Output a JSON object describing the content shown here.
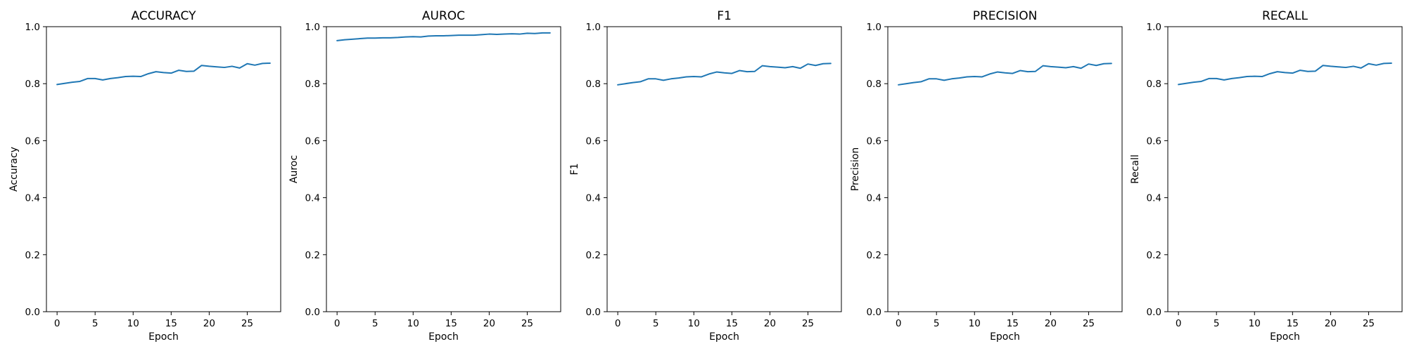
{
  "figure": {
    "line_color": "#1f77b4"
  },
  "chart_data": [
    {
      "type": "line",
      "title": "ACCURACY",
      "xlabel": "Epoch",
      "ylabel": "Accuracy",
      "xlim": [
        -1.4,
        29.4
      ],
      "ylim": [
        0.0,
        1.0
      ],
      "xticks": [
        0,
        5,
        10,
        15,
        20,
        25
      ],
      "xtick_labels": [
        "0",
        "5",
        "10",
        "15",
        "20",
        "25"
      ],
      "yticks": [
        0.0,
        0.2,
        0.4,
        0.6,
        0.8,
        1.0
      ],
      "ytick_labels": [
        "0.0",
        "0.2",
        "0.4",
        "0.6",
        "0.8",
        "1.0"
      ],
      "grid": false,
      "series": [
        {
          "x": [
            0,
            1,
            2,
            3,
            4,
            5,
            6,
            7,
            8,
            9,
            10,
            11,
            12,
            13,
            14,
            15,
            16,
            17,
            18,
            19,
            20,
            21,
            22,
            23,
            24,
            25,
            26,
            27,
            28
          ],
          "values": [
            0.797,
            0.801,
            0.805,
            0.808,
            0.818,
            0.818,
            0.813,
            0.818,
            0.821,
            0.825,
            0.826,
            0.825,
            0.835,
            0.842,
            0.839,
            0.837,
            0.847,
            0.843,
            0.844,
            0.864,
            0.861,
            0.859,
            0.857,
            0.861,
            0.855,
            0.87,
            0.865,
            0.871,
            0.872
          ]
        }
      ]
    },
    {
      "type": "line",
      "title": "AUROC",
      "xlabel": "Epoch",
      "ylabel": "Auroc",
      "xlim": [
        -1.4,
        29.4
      ],
      "ylim": [
        0.0,
        1.0
      ],
      "xticks": [
        0,
        5,
        10,
        15,
        20,
        25
      ],
      "xtick_labels": [
        "0",
        "5",
        "10",
        "15",
        "20",
        "25"
      ],
      "yticks": [
        0.0,
        0.2,
        0.4,
        0.6,
        0.8,
        1.0
      ],
      "ytick_labels": [
        "0.0",
        "0.2",
        "0.4",
        "0.6",
        "0.8",
        "1.0"
      ],
      "grid": false,
      "series": [
        {
          "x": [
            0,
            1,
            2,
            3,
            4,
            5,
            6,
            7,
            8,
            9,
            10,
            11,
            12,
            13,
            14,
            15,
            16,
            17,
            18,
            19,
            20,
            21,
            22,
            23,
            24,
            25,
            26,
            27,
            28
          ],
          "values": [
            0.951,
            0.954,
            0.956,
            0.958,
            0.96,
            0.96,
            0.961,
            0.961,
            0.962,
            0.964,
            0.965,
            0.964,
            0.967,
            0.968,
            0.968,
            0.969,
            0.97,
            0.97,
            0.97,
            0.972,
            0.974,
            0.973,
            0.974,
            0.975,
            0.974,
            0.977,
            0.976,
            0.978,
            0.978
          ]
        }
      ]
    },
    {
      "type": "line",
      "title": "F1",
      "xlabel": "Epoch",
      "ylabel": "F1",
      "xlim": [
        -1.4,
        29.4
      ],
      "ylim": [
        0.0,
        1.0
      ],
      "xticks": [
        0,
        5,
        10,
        15,
        20,
        25
      ],
      "xtick_labels": [
        "0",
        "5",
        "10",
        "15",
        "20",
        "25"
      ],
      "yticks": [
        0.0,
        0.2,
        0.4,
        0.6,
        0.8,
        1.0
      ],
      "ytick_labels": [
        "0.0",
        "0.2",
        "0.4",
        "0.6",
        "0.8",
        "1.0"
      ],
      "grid": false,
      "series": [
        {
          "x": [
            0,
            1,
            2,
            3,
            4,
            5,
            6,
            7,
            8,
            9,
            10,
            11,
            12,
            13,
            14,
            15,
            16,
            17,
            18,
            19,
            20,
            21,
            22,
            23,
            24,
            25,
            26,
            27,
            28
          ],
          "values": [
            0.796,
            0.8,
            0.804,
            0.807,
            0.817,
            0.817,
            0.812,
            0.817,
            0.82,
            0.824,
            0.825,
            0.824,
            0.834,
            0.841,
            0.838,
            0.836,
            0.846,
            0.842,
            0.843,
            0.863,
            0.86,
            0.858,
            0.856,
            0.86,
            0.854,
            0.869,
            0.864,
            0.87,
            0.871
          ]
        }
      ]
    },
    {
      "type": "line",
      "title": "PRECISION",
      "xlabel": "Epoch",
      "ylabel": "Precision",
      "xlim": [
        -1.4,
        29.4
      ],
      "ylim": [
        0.0,
        1.0
      ],
      "xticks": [
        0,
        5,
        10,
        15,
        20,
        25
      ],
      "xtick_labels": [
        "0",
        "5",
        "10",
        "15",
        "20",
        "25"
      ],
      "yticks": [
        0.0,
        0.2,
        0.4,
        0.6,
        0.8,
        1.0
      ],
      "ytick_labels": [
        "0.0",
        "0.2",
        "0.4",
        "0.6",
        "0.8",
        "1.0"
      ],
      "grid": false,
      "series": [
        {
          "x": [
            0,
            1,
            2,
            3,
            4,
            5,
            6,
            7,
            8,
            9,
            10,
            11,
            12,
            13,
            14,
            15,
            16,
            17,
            18,
            19,
            20,
            21,
            22,
            23,
            24,
            25,
            26,
            27,
            28
          ],
          "values": [
            0.796,
            0.8,
            0.804,
            0.807,
            0.817,
            0.817,
            0.812,
            0.817,
            0.82,
            0.824,
            0.825,
            0.824,
            0.834,
            0.841,
            0.838,
            0.836,
            0.846,
            0.842,
            0.843,
            0.863,
            0.86,
            0.858,
            0.856,
            0.86,
            0.854,
            0.869,
            0.864,
            0.87,
            0.871
          ]
        }
      ]
    },
    {
      "type": "line",
      "title": "RECALL",
      "xlabel": "Epoch",
      "ylabel": "Recall",
      "xlim": [
        -1.4,
        29.4
      ],
      "ylim": [
        0.0,
        1.0
      ],
      "xticks": [
        0,
        5,
        10,
        15,
        20,
        25
      ],
      "xtick_labels": [
        "0",
        "5",
        "10",
        "15",
        "20",
        "25"
      ],
      "yticks": [
        0.0,
        0.2,
        0.4,
        0.6,
        0.8,
        1.0
      ],
      "ytick_labels": [
        "0.0",
        "0.2",
        "0.4",
        "0.6",
        "0.8",
        "1.0"
      ],
      "grid": false,
      "series": [
        {
          "x": [
            0,
            1,
            2,
            3,
            4,
            5,
            6,
            7,
            8,
            9,
            10,
            11,
            12,
            13,
            14,
            15,
            16,
            17,
            18,
            19,
            20,
            21,
            22,
            23,
            24,
            25,
            26,
            27,
            28
          ],
          "values": [
            0.797,
            0.801,
            0.805,
            0.808,
            0.818,
            0.818,
            0.813,
            0.818,
            0.821,
            0.825,
            0.826,
            0.825,
            0.835,
            0.842,
            0.839,
            0.837,
            0.847,
            0.843,
            0.844,
            0.864,
            0.861,
            0.859,
            0.857,
            0.861,
            0.855,
            0.87,
            0.865,
            0.871,
            0.872
          ]
        }
      ]
    }
  ]
}
